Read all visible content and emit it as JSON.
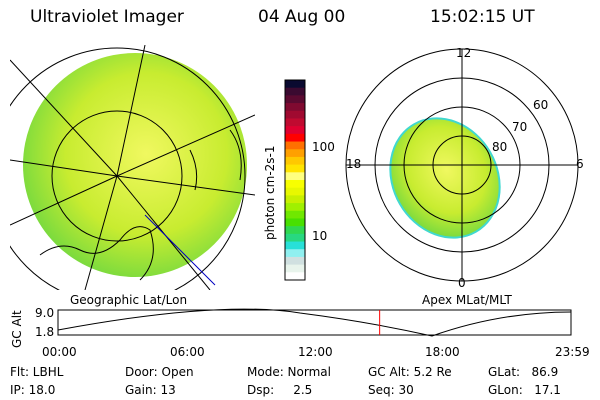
{
  "header": {
    "title": "Ultraviolet Imager",
    "date": "04 Aug 00",
    "time": "15:02:15 UT"
  },
  "colorbar": {
    "label": "photon cm-2s-1",
    "ticks": [
      "100",
      "10"
    ],
    "colors": [
      "#0a0a30",
      "#3a0a30",
      "#5a0a30",
      "#800a30",
      "#a00a30",
      "#c00a30",
      "#e00030",
      "#ff0000",
      "#ff7000",
      "#ffa000",
      "#ffc800",
      "#ffe400",
      "#ffff80",
      "#f8ff00",
      "#e8f800",
      "#c8f000",
      "#a0f000",
      "#70e800",
      "#48e000",
      "#30d850",
      "#28d880",
      "#28e0d8",
      "#90f0f0",
      "#d0e0e0",
      "#e8f4ec",
      "#ffffff"
    ]
  },
  "map": {
    "label": "Geographic Lat/Lon"
  },
  "polar": {
    "label": "Apex MLat/MLT",
    "mlt_labels": {
      "top": "12",
      "bottom": "0",
      "left": "18",
      "right": "6"
    },
    "lat_labels": [
      "60",
      "70",
      "80"
    ]
  },
  "altitude_plot": {
    "ylabel": "GC Alt",
    "yticks": [
      "9.0",
      "1.8"
    ],
    "xticks": [
      "00:00",
      "06:00",
      "12:00",
      "18:00",
      "23:59"
    ],
    "current_time_fraction": 0.627
  },
  "status": {
    "flt": "Flt: LBHL",
    "ip": "IP: 18.0",
    "door": "Door: Open",
    "gain": "Gain: 13",
    "mode": "Mode: Normal",
    "dsp": "Dsp:     2.5",
    "gcalt": "GC Alt: 5.2 Re",
    "seq": "Seq: 30",
    "glat": "GLat:   86.9",
    "glon": "GLon:   17.1"
  },
  "colors": {
    "marker": "#ff0000"
  }
}
